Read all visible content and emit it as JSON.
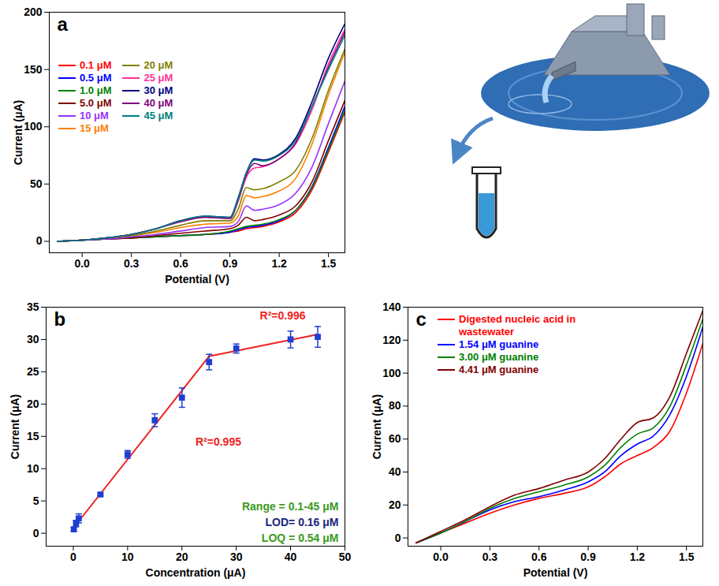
{
  "chart_data": [
    {
      "type": "line",
      "panel_label": "a",
      "x_label": "Potential (V)",
      "y_label": "Current (μA)",
      "xlim": [
        -0.2,
        1.6
      ],
      "xticks": [
        {
          "value": 0,
          "label": "0.0"
        },
        0.3,
        0.6,
        0.9,
        1.2,
        1.5
      ],
      "ylim": [
        -10,
        200
      ],
      "yticks": [
        0,
        50,
        100,
        150,
        200
      ],
      "legend": "upper left",
      "x": [
        -0.15,
        0,
        0.15,
        0.3,
        0.45,
        0.6,
        0.75,
        0.9,
        0.95,
        1.0,
        1.05,
        1.1,
        1.2,
        1.3,
        1.4,
        1.5,
        1.6
      ],
      "series": [
        {
          "name": "0.1 μM",
          "color": "#ff0000",
          "values": [
            0,
            1,
            2,
            3,
            4,
            5,
            6,
            8,
            9,
            11,
            12,
            13,
            17,
            25,
            45,
            78,
            113
          ]
        },
        {
          "name": "0.5 μM",
          "color": "#0000ff",
          "values": [
            0,
            1,
            2,
            3,
            4,
            5,
            6,
            8,
            10,
            12,
            13,
            14,
            18,
            27,
            48,
            82,
            118
          ]
        },
        {
          "name": "1.0 μM",
          "color": "#008000",
          "values": [
            0,
            1,
            2,
            3,
            4,
            5,
            6,
            9,
            11,
            13,
            14,
            15,
            19,
            27,
            47,
            80,
            115
          ]
        },
        {
          "name": "5.0 μM",
          "color": "#800000",
          "values": [
            0,
            1,
            2,
            3,
            5,
            7,
            9,
            11,
            14,
            21,
            18,
            19,
            23,
            31,
            52,
            88,
            123
          ]
        },
        {
          "name": "10 μM",
          "color": "#9933ff",
          "values": [
            0,
            1,
            2,
            4,
            6,
            9,
            12,
            13,
            17,
            31,
            27,
            28,
            32,
            42,
            65,
            103,
            140
          ]
        },
        {
          "name": "15 μM",
          "color": "#ff8000",
          "values": [
            0,
            1,
            3,
            5,
            8,
            12,
            15,
            16,
            22,
            40,
            38,
            39,
            44,
            55,
            85,
            128,
            165
          ]
        },
        {
          "name": "20 μM",
          "color": "#808000",
          "values": [
            0,
            1,
            3,
            5,
            9,
            14,
            18,
            18,
            28,
            47,
            45,
            46,
            52,
            62,
            90,
            132,
            168
          ]
        },
        {
          "name": "25 μM",
          "color": "#ff3399",
          "values": [
            0,
            1,
            3,
            6,
            11,
            18,
            21,
            20,
            35,
            56,
            64,
            65,
            72,
            85,
            115,
            155,
            185
          ]
        },
        {
          "name": "30 μM",
          "color": "#000080",
          "values": [
            0,
            1,
            3,
            6,
            11,
            18,
            22,
            21,
            38,
            60,
            72,
            71,
            76,
            90,
            122,
            160,
            190
          ]
        },
        {
          "name": "40 μM",
          "color": "#800080",
          "values": [
            0,
            1,
            3,
            6,
            11,
            17,
            21,
            20,
            36,
            58,
            68,
            66,
            72,
            86,
            118,
            152,
            183
          ]
        },
        {
          "name": "45 μM",
          "color": "#008080",
          "values": [
            0,
            1,
            3,
            6,
            11,
            18,
            22,
            21,
            37,
            60,
            71,
            70,
            75,
            88,
            118,
            150,
            180
          ]
        }
      ]
    },
    {
      "type": "scatter",
      "panel_label": "b",
      "x_label": "Concentration (μA)",
      "y_label": "Current (μA)",
      "xlim": [
        -5,
        50
      ],
      "xticks": [
        0,
        10,
        20,
        30,
        40,
        50
      ],
      "ylim": [
        -2,
        35
      ],
      "yticks": [
        0,
        5,
        10,
        15,
        20,
        25,
        30,
        35
      ],
      "marker": "square",
      "color": "#1f3fd0",
      "x": [
        0.1,
        0.5,
        1.0,
        5,
        10,
        15,
        20,
        25,
        30,
        40,
        45
      ],
      "values": [
        0.6,
        1.5,
        2.3,
        6.0,
        12.2,
        17.5,
        21.0,
        26.5,
        28.6,
        30.0,
        30.4
      ],
      "errors": [
        0.3,
        0.5,
        0.7,
        0.2,
        0.6,
        1.0,
        1.5,
        1.2,
        0.7,
        1.3,
        1.6
      ],
      "fits": [
        {
          "x": [
            0.1,
            25
          ],
          "y": [
            0.9,
            27.4
          ],
          "label": "R²=0.995",
          "color": "#ee2222"
        },
        {
          "x": [
            25,
            45
          ],
          "y": [
            27.4,
            30.8
          ],
          "label": "R²=0.996",
          "color": "#ee2222"
        }
      ],
      "annotations": [
        {
          "text": "Range = 0.1-45 μM",
          "color": "#3a9a20"
        },
        {
          "text": "LOD= 0.16 μM",
          "color": "#1a237e"
        },
        {
          "text": "LOQ = 0.54 μM",
          "color": "#3a9a20"
        }
      ]
    },
    {
      "type": "line",
      "panel_label": "c",
      "x_label": "Potential (V)",
      "y_label": "Current (μA)",
      "xlim": [
        -0.2,
        1.6
      ],
      "xticks": [
        {
          "value": 0,
          "label": "0.0"
        },
        0.3,
        0.6,
        0.9,
        1.2,
        1.5
      ],
      "ylim": [
        -5,
        140
      ],
      "yticks": [
        0,
        20,
        40,
        60,
        80,
        100,
        120,
        140
      ],
      "legend": "upper left",
      "x": [
        -0.15,
        0,
        0.15,
        0.3,
        0.45,
        0.6,
        0.75,
        0.9,
        1.0,
        1.1,
        1.2,
        1.3,
        1.4,
        1.5,
        1.6
      ],
      "series": [
        {
          "name": "Digested nucleic acid in wastewater",
          "color": "#ff0000",
          "values": [
            -3,
            3,
            9,
            15,
            20,
            24,
            27,
            31,
            37,
            45,
            50,
            55,
            65,
            88,
            118
          ]
        },
        {
          "name": "1.54 μM guanine",
          "color": "#0000ff",
          "values": [
            -3,
            3,
            10,
            17,
            22,
            25,
            29,
            34,
            40,
            50,
            57,
            62,
            75,
            98,
            128
          ]
        },
        {
          "name": "3.00 μM guanine",
          "color": "#008000",
          "values": [
            -3,
            3,
            10,
            18,
            24,
            28,
            32,
            37,
            44,
            55,
            63,
            67,
            80,
            105,
            133
          ]
        },
        {
          "name": "4.41 μM guanine",
          "color": "#800000",
          "values": [
            -3,
            4,
            11,
            19,
            26,
            30,
            35,
            40,
            48,
            60,
            70,
            73,
            86,
            112,
            138
          ]
        }
      ]
    }
  ]
}
